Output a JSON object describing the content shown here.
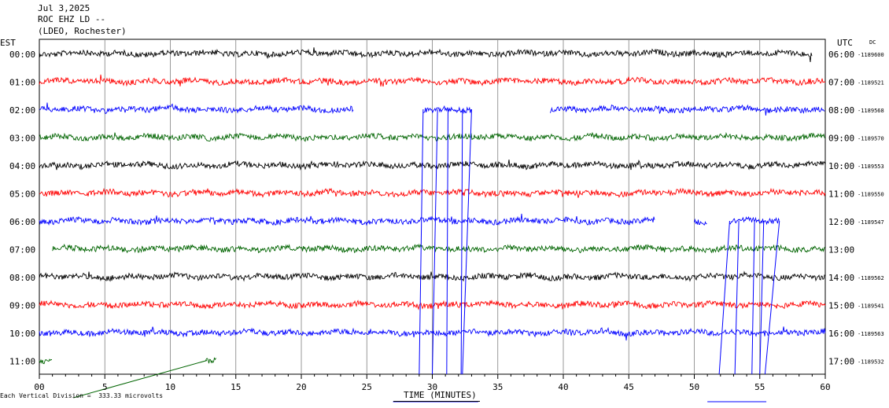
{
  "header": {
    "date": "Jul 3,2025",
    "channel": "ROC EHZ LD --",
    "network": "(LDEO, Rochester)"
  },
  "left_axis_label": "EST",
  "right_axis_label": "UTC",
  "dc_label": "DC",
  "footer_scale": "Each Vertical Division =  333.33 microvolts",
  "colors": {
    "black": "#000000",
    "red": "#ff0000",
    "blue": "#0000ff",
    "green": "#006400",
    "grid": "#808080"
  },
  "chart_data": {
    "type": "line",
    "xlabel": "TIME (MINUTES)",
    "xlim": [
      0,
      60
    ],
    "x_ticks": [
      "00",
      "5",
      "10",
      "15",
      "20",
      "25",
      "30",
      "35",
      "40",
      "45",
      "50",
      "55",
      "60"
    ],
    "rows": [
      {
        "est": "00:00",
        "utc": "06:00",
        "dc": "-1189600",
        "color": "black",
        "segments": [
          [
            0,
            59
          ]
        ]
      },
      {
        "est": "01:00",
        "utc": "07:00",
        "dc": "-1189521",
        "color": "red",
        "segments": [
          [
            0,
            60
          ]
        ]
      },
      {
        "est": "02:00",
        "utc": "08:00",
        "dc": "-1189568",
        "color": "blue",
        "segments": [
          [
            0,
            24
          ],
          [
            29.3,
            33
          ],
          [
            39,
            60
          ]
        ]
      },
      {
        "est": "03:00",
        "utc": "09:00",
        "dc": "-1189570",
        "color": "green",
        "segments": [
          [
            0,
            60
          ]
        ]
      },
      {
        "est": "04:00",
        "utc": "10:00",
        "dc": "-1189553",
        "color": "black",
        "segments": [
          [
            0,
            60
          ]
        ]
      },
      {
        "est": "05:00",
        "utc": "11:00",
        "dc": "-1189550",
        "color": "red",
        "segments": [
          [
            0,
            60
          ]
        ]
      },
      {
        "est": "06:00",
        "utc": "12:00",
        "dc": "-1189547",
        "color": "blue",
        "segments": [
          [
            0,
            47
          ],
          [
            50,
            51
          ],
          [
            52.7,
            56.5
          ]
        ]
      },
      {
        "est": "07:00",
        "utc": "13:00",
        "dc": "",
        "color": "green",
        "segments": [
          [
            1,
            60
          ]
        ]
      },
      {
        "est": "08:00",
        "utc": "14:00",
        "dc": "-1189562",
        "color": "black",
        "segments": [
          [
            0,
            60
          ]
        ]
      },
      {
        "est": "09:00",
        "utc": "15:00",
        "dc": "-1189541",
        "color": "red",
        "segments": [
          [
            0,
            60
          ]
        ]
      },
      {
        "est": "10:00",
        "utc": "16:00",
        "dc": "-1189563",
        "color": "blue",
        "segments": [
          [
            0,
            60
          ]
        ]
      },
      {
        "est": "11:00",
        "utc": "17:00",
        "dc": "-1189532",
        "color": "green",
        "segments": [
          [
            0,
            1
          ],
          [
            12.7,
            13.5
          ]
        ]
      }
    ]
  }
}
